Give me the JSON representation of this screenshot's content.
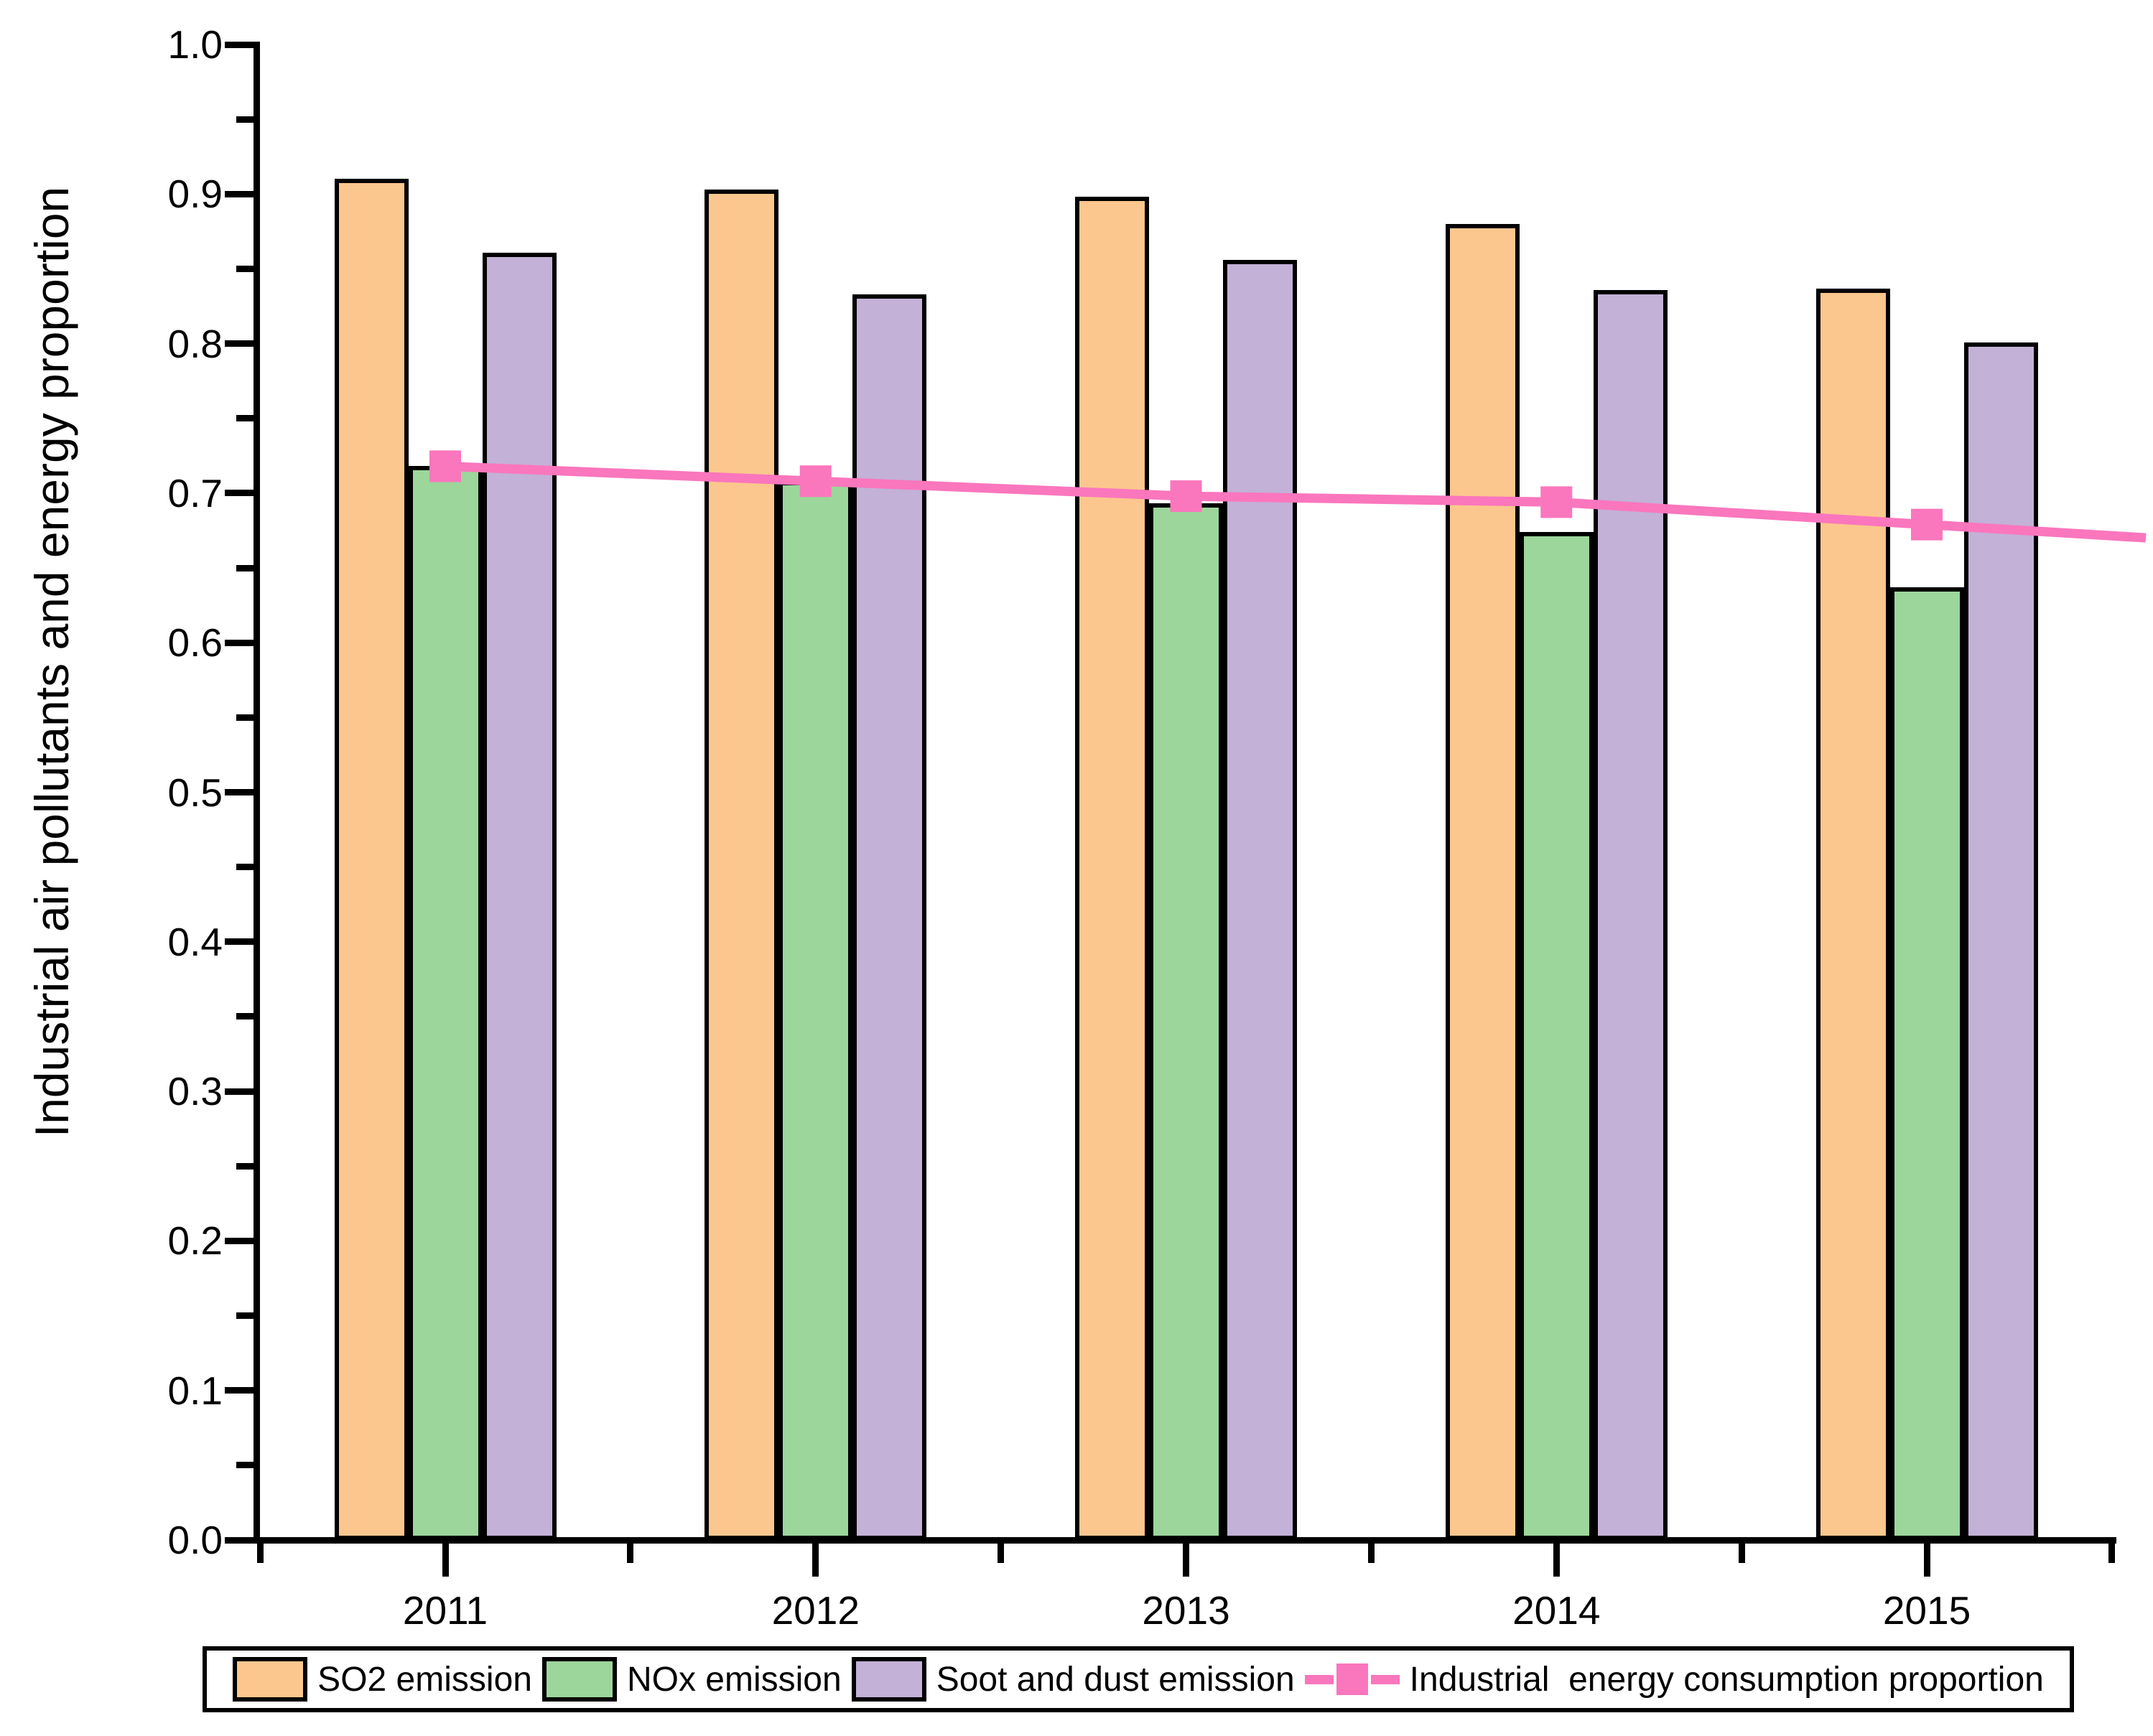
{
  "chart_data": {
    "type": "bar",
    "title": "",
    "categories": [
      "2011",
      "2012",
      "2013",
      "2014",
      "2015"
    ],
    "series": [
      {
        "name": "SO2 emission",
        "type": "bar",
        "color": "#FBC78E",
        "border_color": "#000000",
        "values": [
          0.91,
          0.903,
          0.898,
          0.88,
          0.837
        ]
      },
      {
        "name": "NOx emission",
        "type": "bar",
        "color": "#9CD69B",
        "border_color": "#000000",
        "values": [
          0.718,
          0.708,
          0.693,
          0.674,
          0.637
        ]
      },
      {
        "name": "Soot and dust emission",
        "type": "bar",
        "color": "#C3B1D7",
        "border_color": "#000000",
        "values": [
          0.861,
          0.833,
          0.856,
          0.836,
          0.801
        ]
      },
      {
        "name": "Industrial  energy consumption proportion",
        "type": "line",
        "color": "#FA76BD",
        "marker": "square",
        "values": [
          0.718,
          0.708,
          0.698,
          0.694,
          0.679
        ]
      }
    ],
    "xlabel": "",
    "ylabel": "Industrial air pollutants and energy proportion",
    "ylim": [
      0.0,
      1.0
    ],
    "y_major_tick_step": 0.1,
    "y_minor_tick_step": 0.05,
    "y_tick_labels": [
      "0.0",
      "0.1",
      "0.2",
      "0.3",
      "0.4",
      "0.5",
      "0.6",
      "0.7",
      "0.8",
      "0.9",
      "1.0"
    ],
    "grid": false,
    "legend_position": "bottom",
    "axis_color": "#000000",
    "background_color": "#FFFFFF"
  }
}
